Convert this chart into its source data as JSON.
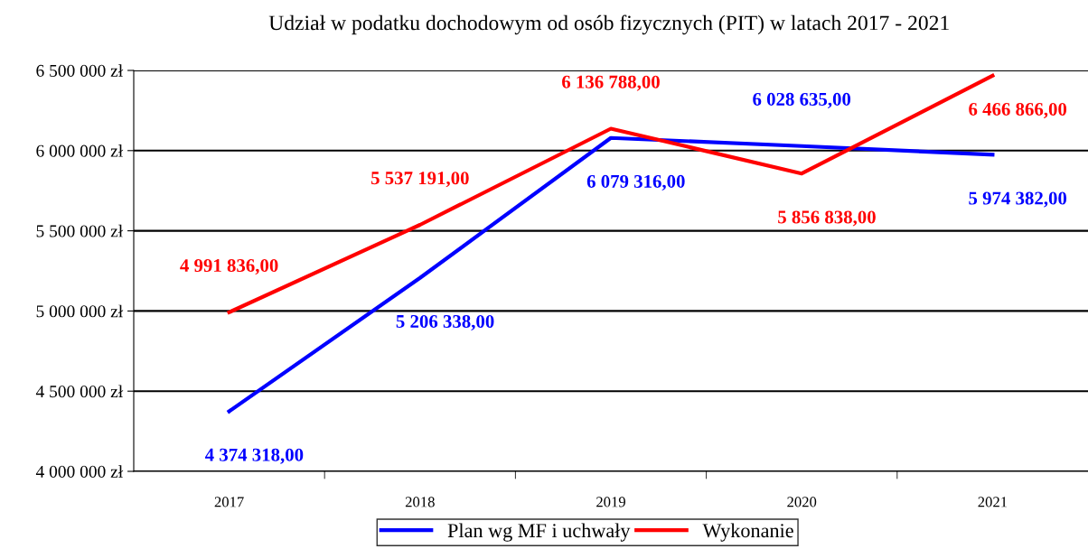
{
  "chart_data": {
    "type": "line",
    "title": "Udział w podatku dochodowym od osób fizycznych (PIT) w latach 2017 - 2021",
    "categories": [
      "2017",
      "2018",
      "2019",
      "2020",
      "2021"
    ],
    "series": [
      {
        "name": "Plan wg MF i uchwały",
        "color": "#0000ff",
        "values": [
          4374318,
          5206338,
          6079316,
          6028635,
          5974382
        ],
        "value_labels": [
          "4 374 318,00",
          "5 206 338,00",
          "6 079 316,00",
          "6 028 635,00",
          "5 974 382,00"
        ]
      },
      {
        "name": "Wykonanie",
        "color": "#ff0000",
        "values": [
          4991836,
          5537191,
          6136788,
          5856838,
          6466866
        ],
        "value_labels": [
          "4 991 836,00",
          "5 537 191,00",
          "6 136 788,00",
          "5 856 838,00",
          "6 466 866,00"
        ]
      }
    ],
    "ylim": [
      4000000,
      6500000
    ],
    "yticks": [
      {
        "value": 4000000,
        "label": "4 000 000 zł"
      },
      {
        "value": 4500000,
        "label": "4 500 000 zł"
      },
      {
        "value": 5000000,
        "label": "5 000 000 zł"
      },
      {
        "value": 5500000,
        "label": "5 500 000 zł"
      },
      {
        "value": 6000000,
        "label": "6 000 000 zł"
      },
      {
        "value": 6500000,
        "label": "6 500 000 zł"
      }
    ],
    "grid": "y",
    "legend": "bottom",
    "marker": "none",
    "line_style": "solid"
  }
}
